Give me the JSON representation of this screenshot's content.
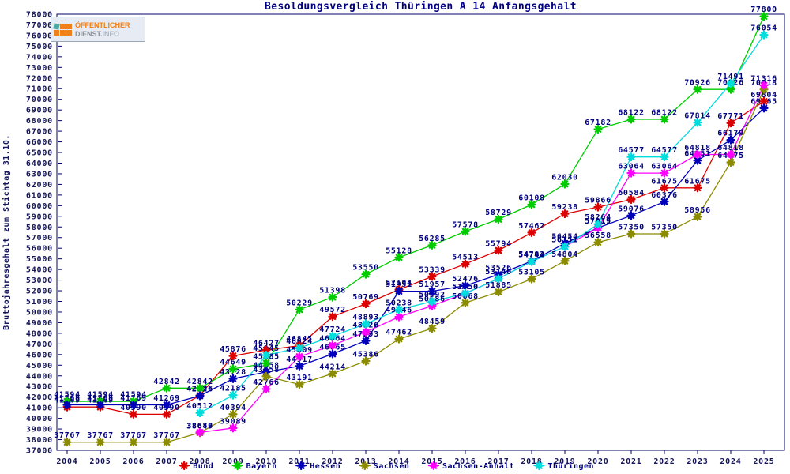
{
  "title": "Besoldungsvergleich Thüringen A 14 Anfangsgehalt",
  "logo": {
    "line1": "ÖFFENTLICHER",
    "line2_dienst": "DIENST.",
    "line2_info": "INFO"
  },
  "chart_data": {
    "type": "line",
    "x": [
      2004,
      2005,
      2006,
      2007,
      2008,
      2009,
      2010,
      2011,
      2012,
      2013,
      2014,
      2015,
      2016,
      2017,
      2018,
      2019,
      2020,
      2021,
      2022,
      2023,
      2024,
      2025
    ],
    "xlabel": "",
    "ylabel": "Bruttojahresgehalt zum Stichtag 31.10.",
    "ylim": [
      37000,
      78000
    ],
    "ytick_step": 1000,
    "grid": false,
    "legend_position": "bottom",
    "point_labels": true,
    "series": [
      {
        "name": "Bund",
        "color": "#dd0000",
        "values": [
          41069,
          41069,
          40390,
          40390,
          42156,
          45876,
          46427,
          46845,
          49572,
          50769,
          52104,
          53339,
          54513,
          55794,
          57462,
          59238,
          59866,
          60584,
          61675,
          61675,
          67771,
          69804
        ]
      },
      {
        "name": "Bayern",
        "color": "#00cc00",
        "values": [
          41594,
          41594,
          41594,
          42842,
          42842,
          44649,
          45185,
          50229,
          51398,
          53550,
          55128,
          56285,
          57578,
          58729,
          60108,
          62030,
          67182,
          68122,
          68122,
          70926,
          70926,
          77800
        ]
      },
      {
        "name": "Hessen",
        "color": "#0000bb",
        "values": [
          41269,
          41269,
          41269,
          41269,
          42126,
          43728,
          44358,
          44917,
          46065,
          47293,
          51951,
          51957,
          52476,
          53526,
          54792,
          56454,
          57919,
          59076,
          60376,
          64251,
          66179,
          69165
        ]
      },
      {
        "name": "Sachsen",
        "color": "#8b8b00",
        "values": [
          37767,
          37767,
          37767,
          37767,
          38649,
          40394,
          43958,
          43191,
          44214,
          45386,
          47462,
          48459,
          50868,
          51885,
          53105,
          54804,
          56558,
          57350,
          57350,
          58956,
          64075,
          70918
        ]
      },
      {
        "name": "Sachsen-Anhalt",
        "color": "#ff00ff",
        "values": [
          null,
          null,
          null,
          null,
          38688,
          39089,
          42766,
          45809,
          46864,
          48126,
          49546,
          50586,
          51750,
          53140,
          54744,
          56151,
          57919,
          63064,
          63064,
          64818,
          64818,
          71316
        ]
      },
      {
        "name": "Thüringen",
        "color": "#00dddd",
        "values": [
          null,
          null,
          null,
          null,
          40512,
          42185,
          45945,
          46624,
          47724,
          48893,
          50238,
          50992,
          51750,
          53140,
          54744,
          56151,
          58264,
          64577,
          64577,
          67814,
          71491,
          76054
        ]
      }
    ]
  }
}
